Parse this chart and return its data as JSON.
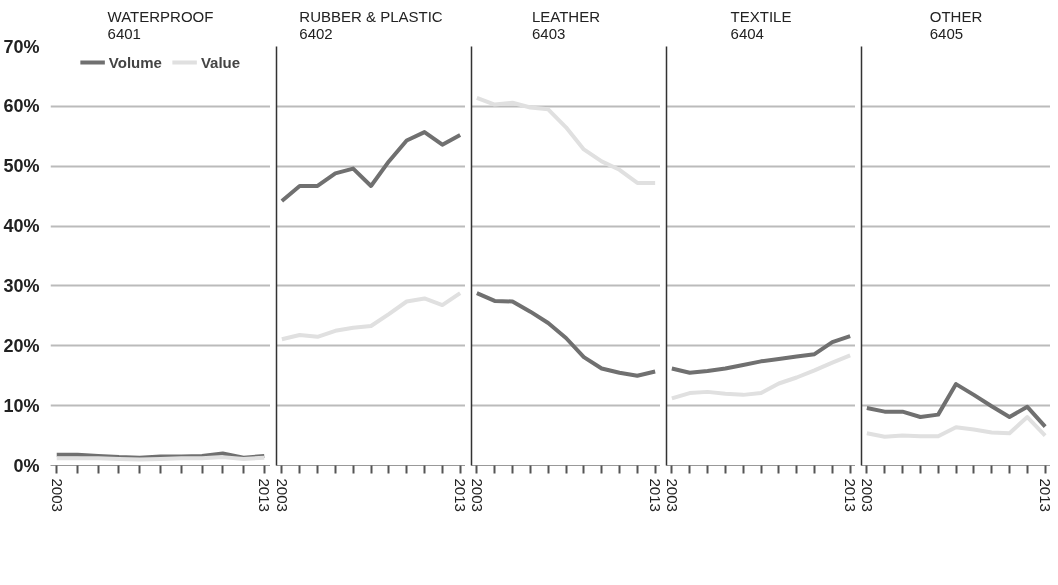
{
  "chart_data": [
    {
      "type": "line",
      "title": "WATERPROOF\n6401",
      "x": [
        2003,
        2004,
        2005,
        2006,
        2007,
        2008,
        2009,
        2010,
        2011,
        2012,
        2013
      ],
      "xlim": [
        2002.7,
        2013.3
      ],
      "xticks": [
        {
          "value": 2003,
          "label": "2003"
        },
        {
          "value": 2004,
          "label": null
        },
        {
          "value": 2005,
          "label": null
        },
        {
          "value": 2006,
          "label": null
        },
        {
          "value": 2007,
          "label": null
        },
        {
          "value": 2008,
          "label": null
        },
        {
          "value": 2009,
          "label": null
        },
        {
          "value": 2010,
          "label": null
        },
        {
          "value": 2011,
          "label": null
        },
        {
          "value": 2012,
          "label": null
        },
        {
          "value": 2013,
          "label": "2013"
        }
      ],
      "ylim": [
        0,
        70
      ],
      "yticks": [
        {
          "value": 0,
          "label": "0%"
        },
        {
          "value": 10,
          "label": "10%"
        },
        {
          "value": 20,
          "label": "20%"
        },
        {
          "value": 30,
          "label": "30%"
        },
        {
          "value": 40,
          "label": "40%"
        },
        {
          "value": 50,
          "label": "50%"
        },
        {
          "value": 60,
          "label": "60%"
        },
        {
          "value": 70,
          "label": "70%"
        }
      ],
      "grid": "y",
      "legend": "top",
      "series": [
        {
          "name": "Volume",
          "color": "#707070",
          "values": [
            1.8,
            1.8,
            1.6,
            1.4,
            1.3,
            1.5,
            1.5,
            1.6,
            2.0,
            1.3,
            1.6
          ]
        },
        {
          "name": "Value",
          "color": "#e0e0e0",
          "values": [
            1.2,
            1.2,
            1.2,
            1.1,
            1.0,
            1.1,
            1.2,
            1.2,
            1.4,
            1.1,
            1.3
          ]
        }
      ]
    },
    {
      "type": "line",
      "title": "RUBBER & PLASTIC\n6402",
      "x": [
        2003,
        2004,
        2005,
        2006,
        2007,
        2008,
        2009,
        2010,
        2011,
        2012,
        2013
      ],
      "xlim": [
        2002.7,
        2013.3
      ],
      "xticks": [
        {
          "value": 2003,
          "label": "2003"
        },
        {
          "value": 2004,
          "label": null
        },
        {
          "value": 2005,
          "label": null
        },
        {
          "value": 2006,
          "label": null
        },
        {
          "value": 2007,
          "label": null
        },
        {
          "value": 2008,
          "label": null
        },
        {
          "value": 2009,
          "label": null
        },
        {
          "value": 2010,
          "label": null
        },
        {
          "value": 2011,
          "label": null
        },
        {
          "value": 2012,
          "label": null
        },
        {
          "value": 2013,
          "label": "2013"
        }
      ],
      "ylim": [
        0,
        70
      ],
      "yticks": [
        0,
        10,
        20,
        30,
        40,
        50,
        60,
        70
      ],
      "grid": "y",
      "tick_labels": "x",
      "series": [
        {
          "color": "#707070",
          "values": [
            44.2,
            46.7,
            46.7,
            48.8,
            49.6,
            46.7,
            50.8,
            54.3,
            55.7,
            53.6,
            55.2
          ]
        },
        {
          "color": "#e0e0e0",
          "values": [
            21.1,
            21.8,
            21.5,
            22.5,
            23.0,
            23.3,
            25.3,
            27.4,
            27.9,
            26.8,
            28.8
          ]
        }
      ]
    },
    {
      "type": "line",
      "title": "LEATHER\n6403",
      "x": [
        2003,
        2004,
        2005,
        2006,
        2007,
        2008,
        2009,
        2010,
        2011,
        2012,
        2013
      ],
      "xlim": [
        2002.7,
        2013.3
      ],
      "xticks": [
        {
          "value": 2003,
          "label": "2003"
        },
        {
          "value": 2004,
          "label": null
        },
        {
          "value": 2005,
          "label": null
        },
        {
          "value": 2006,
          "label": null
        },
        {
          "value": 2007,
          "label": null
        },
        {
          "value": 2008,
          "label": null
        },
        {
          "value": 2009,
          "label": null
        },
        {
          "value": 2010,
          "label": null
        },
        {
          "value": 2011,
          "label": null
        },
        {
          "value": 2012,
          "label": null
        },
        {
          "value": 2013,
          "label": "2013"
        }
      ],
      "ylim": [
        0,
        70
      ],
      "yticks": [
        0,
        10,
        20,
        30,
        40,
        50,
        60,
        70
      ],
      "grid": "y",
      "tick_labels": "x",
      "series": [
        {
          "color": "#707070",
          "values": [
            28.8,
            27.5,
            27.4,
            25.7,
            23.8,
            21.3,
            18.1,
            16.2,
            15.5,
            15.0,
            15.7
          ]
        },
        {
          "color": "#e0e0e0",
          "values": [
            61.4,
            60.3,
            60.6,
            59.8,
            59.5,
            56.5,
            52.8,
            50.8,
            49.4,
            47.2,
            47.2
          ]
        }
      ]
    },
    {
      "type": "line",
      "title": "TEXTILE\n6404",
      "x": [
        2003,
        2004,
        2005,
        2006,
        2007,
        2008,
        2009,
        2010,
        2011,
        2012,
        2013
      ],
      "xlim": [
        2002.7,
        2013.3
      ],
      "xticks": [
        {
          "value": 2003,
          "label": "2003"
        },
        {
          "value": 2004,
          "label": null
        },
        {
          "value": 2005,
          "label": null
        },
        {
          "value": 2006,
          "label": null
        },
        {
          "value": 2007,
          "label": null
        },
        {
          "value": 2008,
          "label": null
        },
        {
          "value": 2009,
          "label": null
        },
        {
          "value": 2010,
          "label": null
        },
        {
          "value": 2011,
          "label": null
        },
        {
          "value": 2012,
          "label": null
        },
        {
          "value": 2013,
          "label": "2013"
        }
      ],
      "ylim": [
        0,
        70
      ],
      "yticks": [
        0,
        10,
        20,
        30,
        40,
        50,
        60,
        70
      ],
      "grid": "y",
      "tick_labels": "x",
      "series": [
        {
          "color": "#707070",
          "values": [
            16.2,
            15.5,
            15.8,
            16.2,
            16.8,
            17.4,
            17.8,
            18.2,
            18.6,
            20.6,
            21.6
          ]
        },
        {
          "color": "#e0e0e0",
          "values": [
            11.2,
            12.1,
            12.3,
            12.0,
            11.8,
            12.1,
            13.7,
            14.7,
            15.9,
            17.2,
            18.4
          ]
        }
      ]
    },
    {
      "type": "line",
      "title": "OTHER\n6405",
      "x": [
        2003,
        2004,
        2005,
        2006,
        2007,
        2008,
        2009,
        2010,
        2011,
        2012,
        2013
      ],
      "xlim": [
        2002.7,
        2013.3
      ],
      "xticks": [
        {
          "value": 2003,
          "label": "2003"
        },
        {
          "value": 2004,
          "label": null
        },
        {
          "value": 2005,
          "label": null
        },
        {
          "value": 2006,
          "label": null
        },
        {
          "value": 2007,
          "label": null
        },
        {
          "value": 2008,
          "label": null
        },
        {
          "value": 2009,
          "label": null
        },
        {
          "value": 2010,
          "label": null
        },
        {
          "value": 2011,
          "label": null
        },
        {
          "value": 2012,
          "label": null
        },
        {
          "value": 2013,
          "label": "2013"
        }
      ],
      "ylim": [
        0,
        70
      ],
      "yticks": [
        0,
        10,
        20,
        30,
        40,
        50,
        60,
        70
      ],
      "grid": "y",
      "tick_labels": "x",
      "series": [
        {
          "color": "#707070",
          "values": [
            9.6,
            9.0,
            9.0,
            8.1,
            8.5,
            13.6,
            11.8,
            9.9,
            8.1,
            9.8,
            6.5
          ]
        },
        {
          "color": "#e0e0e0",
          "values": [
            5.4,
            4.8,
            5.0,
            4.9,
            4.9,
            6.4,
            6.0,
            5.5,
            5.4,
            8.1,
            5.0
          ]
        }
      ]
    }
  ]
}
